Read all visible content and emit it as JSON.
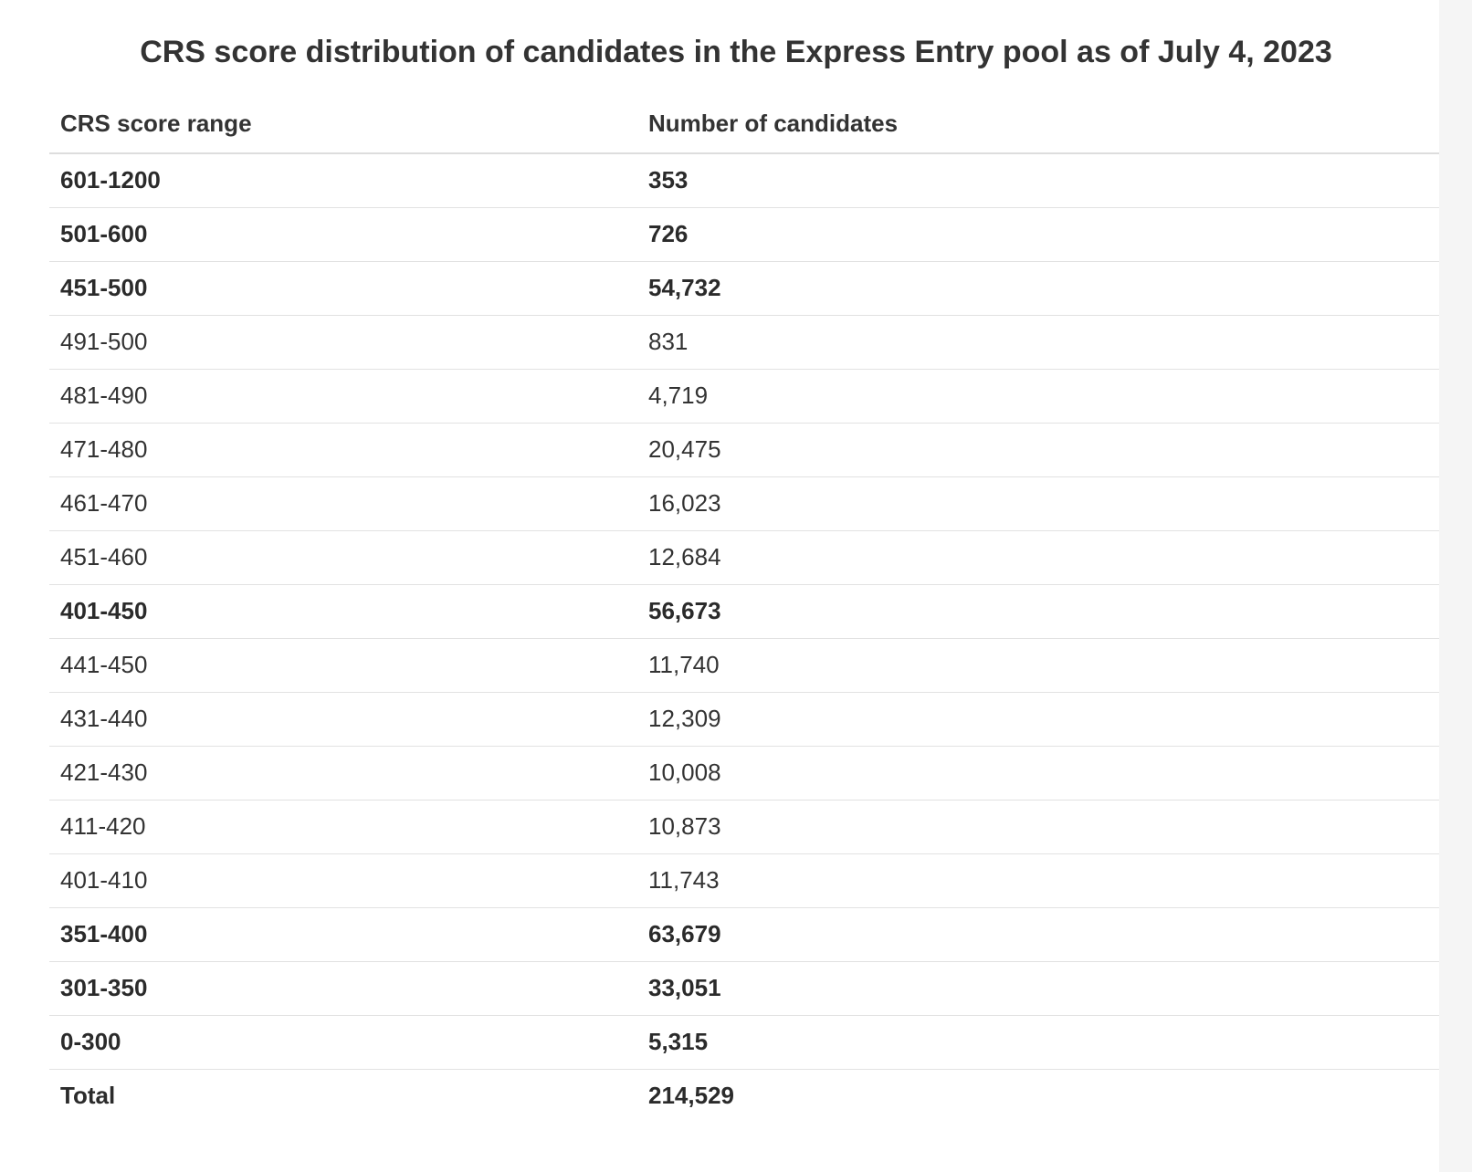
{
  "title": "CRS score distribution of candidates in the Express Entry pool as of July 4, 2023",
  "table": {
    "headers": [
      "CRS score range",
      "Number of candidates"
    ],
    "rows": [
      {
        "range": "601-1200",
        "count": "353",
        "bold": true
      },
      {
        "range": "501-600",
        "count": "726",
        "bold": true
      },
      {
        "range": "451-500",
        "count": "54,732",
        "bold": true
      },
      {
        "range": "491-500",
        "count": "831",
        "bold": false
      },
      {
        "range": "481-490",
        "count": "4,719",
        "bold": false
      },
      {
        "range": "471-480",
        "count": "20,475",
        "bold": false
      },
      {
        "range": "461-470",
        "count": "16,023",
        "bold": false
      },
      {
        "range": "451-460",
        "count": "12,684",
        "bold": false
      },
      {
        "range": "401-450",
        "count": "56,673",
        "bold": true
      },
      {
        "range": "441-450",
        "count": "11,740",
        "bold": false
      },
      {
        "range": "431-440",
        "count": "12,309",
        "bold": false
      },
      {
        "range": "421-430",
        "count": "10,008",
        "bold": false
      },
      {
        "range": "411-420",
        "count": "10,873",
        "bold": false
      },
      {
        "range": "401-410",
        "count": "11,743",
        "bold": false
      },
      {
        "range": "351-400",
        "count": "63,679",
        "bold": true
      },
      {
        "range": "301-350",
        "count": "33,051",
        "bold": true
      },
      {
        "range": "0-300",
        "count": "5,315",
        "bold": true
      },
      {
        "range": "Total",
        "count": "214,529",
        "bold": true
      }
    ]
  }
}
